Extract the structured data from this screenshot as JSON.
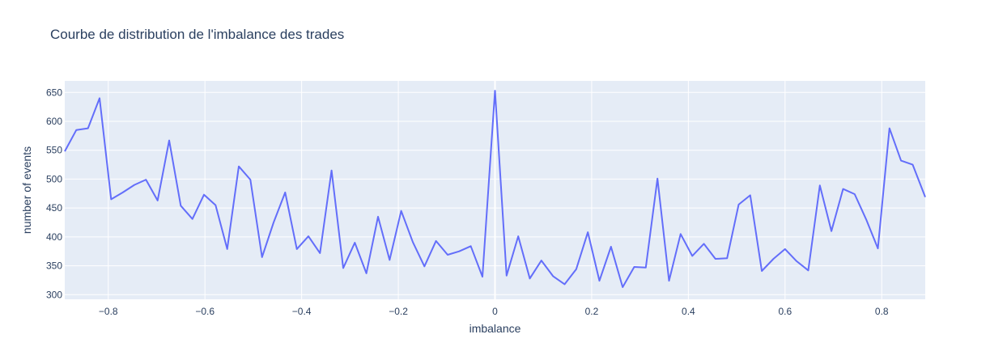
{
  "chart_data": {
    "type": "line",
    "title": "Courbe de distribution de l'imbalance des trades",
    "xlabel": "imbalance",
    "ylabel": "number of events",
    "xlim": [
      -0.89,
      0.89
    ],
    "ylim": [
      292,
      670
    ],
    "x_ticks": [
      -0.8,
      -0.6,
      -0.4,
      -0.2,
      0,
      0.2,
      0.4,
      0.6,
      0.8
    ],
    "x_tick_labels": [
      "−0.8",
      "−0.6",
      "−0.4",
      "−0.2",
      "0",
      "0.2",
      "0.4",
      "0.6",
      "0.8"
    ],
    "y_ticks": [
      300,
      350,
      400,
      450,
      500,
      550,
      600,
      650
    ],
    "y_tick_labels": [
      "300",
      "350",
      "400",
      "450",
      "500",
      "550",
      "600",
      "650"
    ],
    "grid": true,
    "colors": {
      "line": "#636efa",
      "plot_bg": "#e5ecf6",
      "grid": "#ffffff"
    },
    "series": [
      {
        "x": [
          -0.89,
          -0.866,
          -0.842,
          -0.818,
          -0.794,
          -0.77,
          -0.746,
          -0.722,
          -0.698,
          -0.674,
          -0.65,
          -0.626,
          -0.602,
          -0.578,
          -0.554,
          -0.53,
          -0.506,
          -0.482,
          -0.458,
          -0.434,
          -0.41,
          -0.386,
          -0.362,
          -0.338,
          -0.314,
          -0.29,
          -0.266,
          -0.242,
          -0.218,
          -0.194,
          -0.17,
          -0.146,
          -0.122,
          -0.098,
          -0.074,
          -0.05,
          -0.026,
          0.0,
          0.024,
          0.048,
          0.072,
          0.096,
          0.12,
          0.144,
          0.168,
          0.192,
          0.216,
          0.24,
          0.264,
          0.288,
          0.312,
          0.336,
          0.36,
          0.384,
          0.408,
          0.432,
          0.456,
          0.48,
          0.504,
          0.528,
          0.552,
          0.576,
          0.6,
          0.624,
          0.648,
          0.672,
          0.696,
          0.72,
          0.744,
          0.768,
          0.792,
          0.816,
          0.84,
          0.864,
          0.89
        ],
        "values": [
          548,
          585,
          588,
          640,
          465,
          477,
          490,
          499,
          463,
          567,
          454,
          431,
          473,
          455,
          379,
          522,
          499,
          365,
          425,
          477,
          379,
          401,
          372,
          515,
          346,
          390,
          337,
          435,
          360,
          445,
          391,
          349,
          393,
          369,
          375,
          384,
          331,
          653,
          333,
          401,
          328,
          359,
          332,
          318,
          344,
          408,
          324,
          383,
          313,
          348,
          347,
          501,
          324,
          405,
          367,
          388,
          362,
          363,
          456,
          472,
          341,
          362,
          379,
          358,
          342,
          489,
          410,
          483,
          474,
          430,
          380,
          588,
          532,
          525,
          469
        ]
      }
    ]
  }
}
